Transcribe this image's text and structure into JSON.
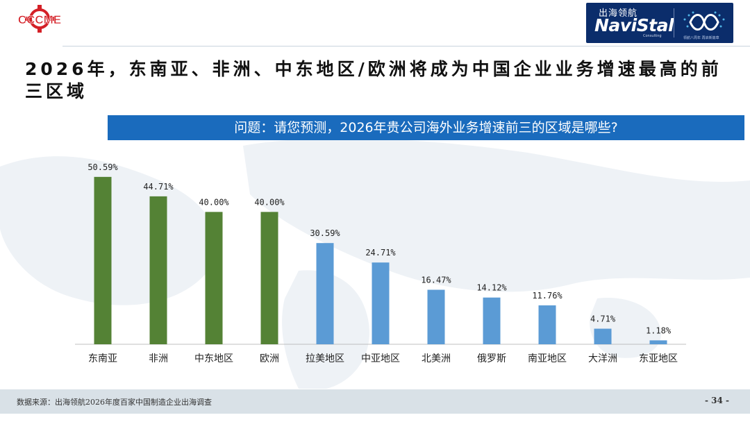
{
  "header": {
    "left_logo_text": "CCCME",
    "right_logo_cn": "出海领航",
    "right_logo_en": "NaviStal",
    "right_logo_sub": "Consulting",
    "right_logo_tag": "领航八周年 再启新篇章"
  },
  "title": "2026年，东南亚、非洲、中东地区/欧洲将成为中国企业业务增速最高的前三区域",
  "question": "问题：请您预测，2026年贵公司海外业务增速前三的区域是哪些?",
  "colors": {
    "top3": "#548235",
    "others": "#5b9bd5",
    "question_bg": "#1a6bbd",
    "footer_bg": "#d9e1e7"
  },
  "chart_data": {
    "type": "bar",
    "categories": [
      "东南亚",
      "非洲",
      "中东地区",
      "欧洲",
      "拉美地区",
      "中亚地区",
      "北美洲",
      "俄罗斯",
      "南亚地区",
      "大洋洲",
      "东亚地区"
    ],
    "values": [
      50.59,
      44.71,
      40.0,
      40.0,
      30.59,
      24.71,
      16.47,
      14.12,
      11.76,
      4.71,
      1.18
    ],
    "labels": [
      "50.59%",
      "44.71%",
      "40.00%",
      "40.00%",
      "30.59%",
      "24.71%",
      "16.47%",
      "14.12%",
      "11.76%",
      "4.71%",
      "1.18%"
    ],
    "highlight_count": 4,
    "ylim": [
      0,
      60
    ],
    "grid": false,
    "legend": "none"
  },
  "footer": {
    "source": "数据来源：出海领航2026年度百家中国制造企业出海调查",
    "page": "- 34 -"
  }
}
